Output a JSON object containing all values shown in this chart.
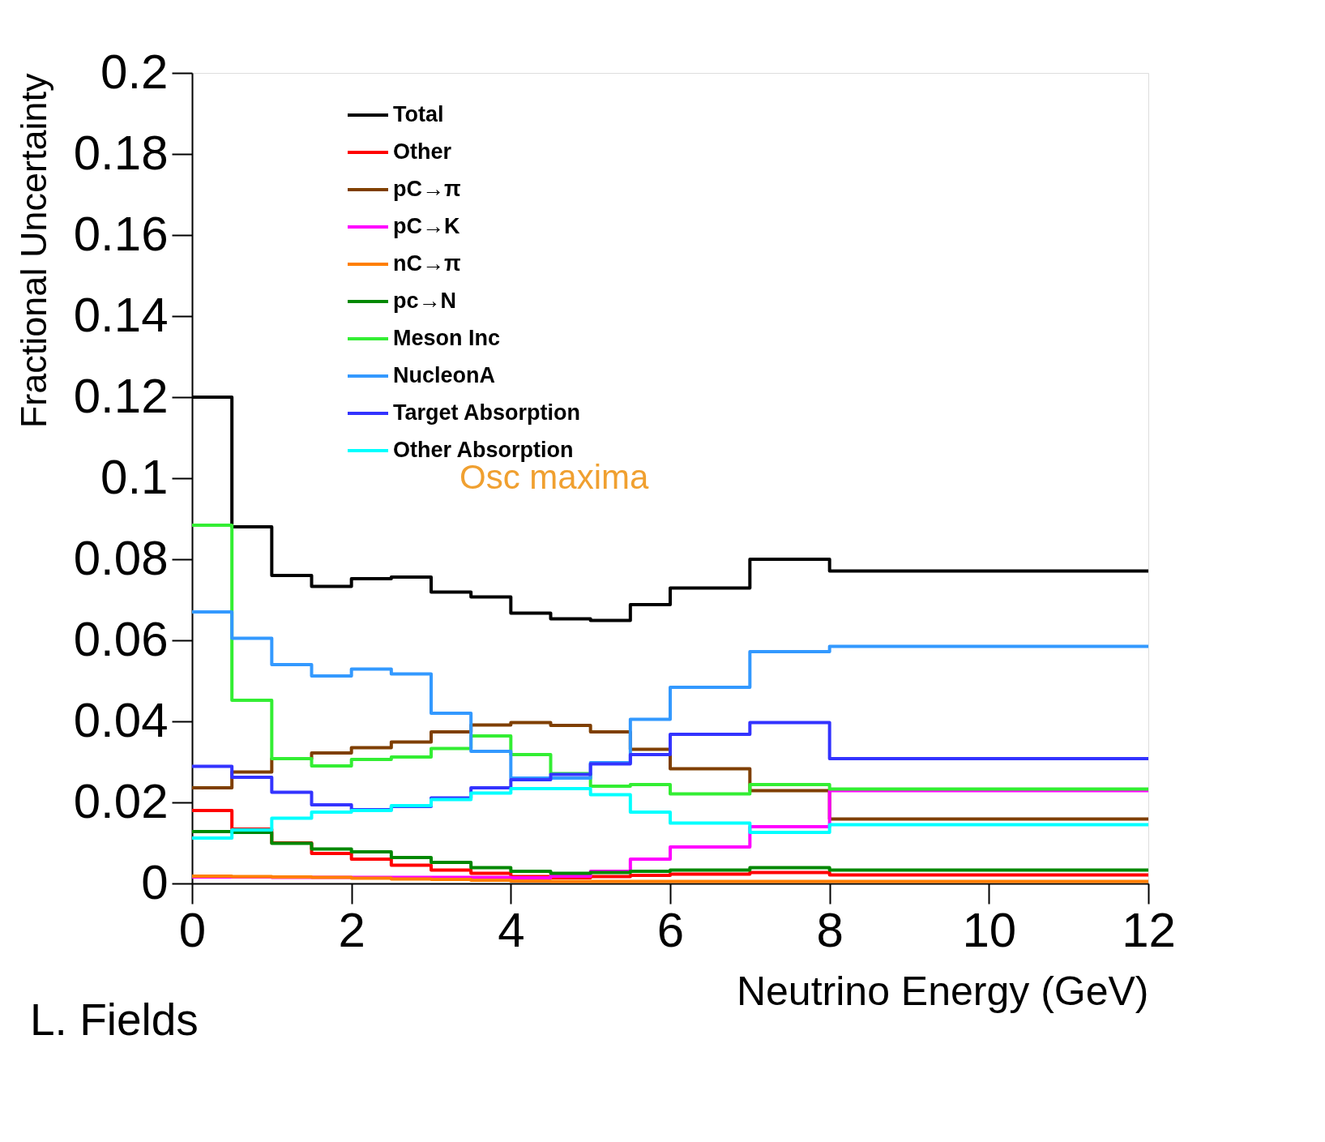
{
  "chart_data": {
    "type": "histogram",
    "xlabel": "Neutrino Energy (GeV)",
    "ylabel": "Fractional Uncertainty",
    "bins": [
      0,
      0.5,
      1,
      1.5,
      2,
      2.5,
      3,
      3.5,
      4,
      4.5,
      5,
      5.5,
      6,
      7,
      8,
      12
    ],
    "series": [
      {
        "name": "Total",
        "color": "#000000",
        "values": [
          0.12,
          0.088,
          0.076,
          0.0733,
          0.0752,
          0.0756,
          0.0719,
          0.0707,
          0.0667,
          0.0653,
          0.0649,
          0.0688,
          0.0729,
          0.08,
          0.0771
        ]
      },
      {
        "name": "Other",
        "color": "#ff0000",
        "values": [
          0.018,
          0.0134,
          0.01,
          0.0074,
          0.006,
          0.0045,
          0.0033,
          0.0025,
          0.0017,
          0.0014,
          0.0017,
          0.002,
          0.0023,
          0.0027,
          0.0021
        ]
      },
      {
        "name": "pC→π",
        "color": "#7f3f00",
        "values": [
          0.0236,
          0.0275,
          0.0308,
          0.0322,
          0.0335,
          0.0349,
          0.0374,
          0.0391,
          0.0397,
          0.039,
          0.0374,
          0.0331,
          0.0283,
          0.0229,
          0.0159
        ]
      },
      {
        "name": "pC→K",
        "color": "#ff00ff",
        "values": [
          0.0016,
          0.0016,
          0.0015,
          0.0015,
          0.0015,
          0.0015,
          0.0015,
          0.0015,
          0.0014,
          0.0018,
          0.003,
          0.006,
          0.009,
          0.014,
          0.0229
        ]
      },
      {
        "name": "nC→π",
        "color": "#ff7f00",
        "values": [
          0.0018,
          0.0017,
          0.0016,
          0.0015,
          0.0013,
          0.0011,
          0.001,
          0.0008,
          0.0006,
          0.0005,
          0.0005,
          0.0005,
          0.0005,
          0.0005,
          0.0005
        ]
      },
      {
        "name": "pc→N",
        "color": "#008800",
        "values": [
          0.0128,
          0.0126,
          0.0099,
          0.0085,
          0.0078,
          0.0064,
          0.0052,
          0.0039,
          0.003,
          0.0025,
          0.0027,
          0.003,
          0.0033,
          0.0039,
          0.0033
        ]
      },
      {
        "name": "Meson Inc",
        "color": "#33ee33",
        "values": [
          0.0884,
          0.0452,
          0.0308,
          0.029,
          0.0306,
          0.0312,
          0.0333,
          0.0364,
          0.0318,
          0.0271,
          0.024,
          0.0244,
          0.0221,
          0.0244,
          0.0233
        ]
      },
      {
        "name": "NucleonA",
        "color": "#3399ff",
        "values": [
          0.067,
          0.0605,
          0.054,
          0.0512,
          0.0529,
          0.0517,
          0.042,
          0.0326,
          0.026,
          0.026,
          0.0298,
          0.0405,
          0.0484,
          0.0572,
          0.0585
        ]
      },
      {
        "name": "Target Absorption",
        "color": "#3333ff",
        "values": [
          0.0289,
          0.0262,
          0.0225,
          0.0194,
          0.0182,
          0.019,
          0.0211,
          0.0236,
          0.0256,
          0.0269,
          0.0295,
          0.0318,
          0.0368,
          0.0397,
          0.0308
        ]
      },
      {
        "name": "Other Absorption",
        "color": "#00ffff",
        "values": [
          0.0112,
          0.0132,
          0.0161,
          0.0176,
          0.018,
          0.0192,
          0.0207,
          0.0223,
          0.0234,
          0.0234,
          0.0219,
          0.0176,
          0.0149,
          0.0126,
          0.0145
        ]
      }
    ],
    "xlim": [
      0,
      12
    ],
    "xticks": [
      0,
      2,
      4,
      6,
      8,
      10,
      12
    ],
    "ylim": [
      0,
      0.2
    ],
    "yticks": [
      0,
      0.02,
      0.04,
      0.06,
      0.08,
      0.1,
      0.12,
      0.14,
      0.16,
      0.18,
      0.2
    ],
    "legend": "top left",
    "grid": false,
    "annotations": [
      "Osc maxima",
      "L. Fields"
    ]
  }
}
